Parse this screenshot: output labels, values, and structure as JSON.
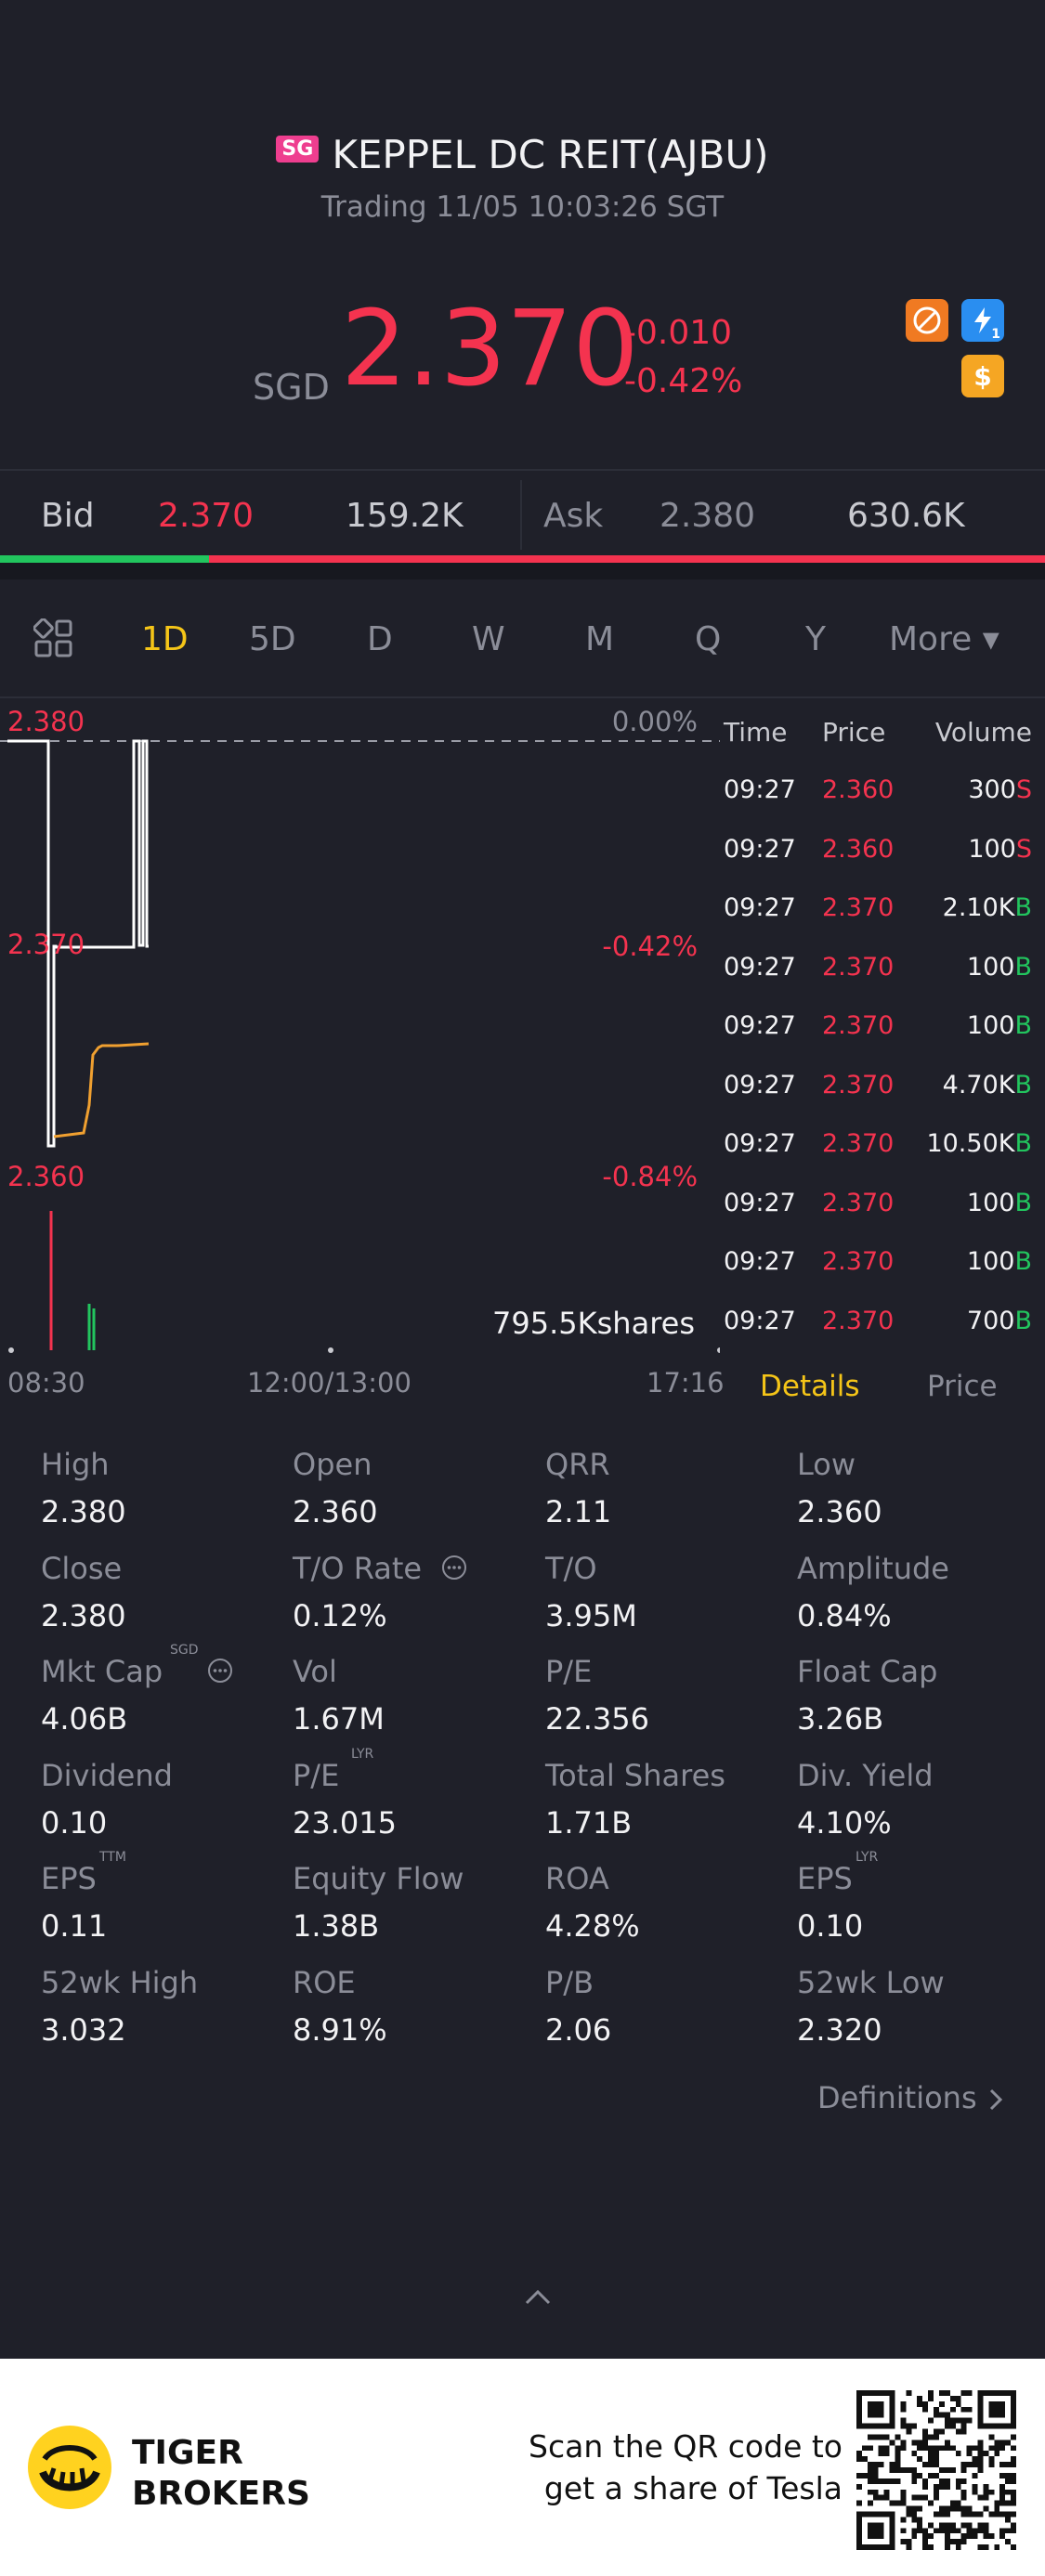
{
  "header": {
    "badge": "SG",
    "title": "KEPPEL DC REIT(AJBU)",
    "status": "Trading 11/05 10:03:26 SGT",
    "currency": "SGD",
    "price": "2.370",
    "change": "-0.010",
    "change_pct": "-0.42%",
    "icon_badge": "1"
  },
  "quote": {
    "bid_label": "Bid",
    "bid_price": "2.370",
    "bid_size": "159.2K",
    "ask_label": "Ask",
    "ask_price": "2.380",
    "ask_size": "630.6K",
    "bid_ratio": 0.2
  },
  "tabs": [
    {
      "label": "1D",
      "active": true
    },
    {
      "label": "5D"
    },
    {
      "label": "D"
    },
    {
      "label": "W"
    },
    {
      "label": "M"
    },
    {
      "label": "Q"
    },
    {
      "label": "Y"
    },
    {
      "label": "More ▾"
    }
  ],
  "chart": {
    "price_high": "2.380",
    "price_mid": "2.370",
    "price_low": "2.360",
    "pct_high": "0.00%",
    "pct_mid": "-0.42%",
    "pct_low": "-0.84%",
    "volume": "795.5Kshares",
    "time_start": "08:30",
    "time_mid": "12:00/13:00",
    "time_end": "17:16"
  },
  "trades": {
    "headers": [
      "Time",
      "Price",
      "Volume"
    ],
    "rows": [
      {
        "time": "09:27",
        "price": "2.360",
        "volume": "300",
        "side": "S"
      },
      {
        "time": "09:27",
        "price": "2.360",
        "volume": "100",
        "side": "S"
      },
      {
        "time": "09:27",
        "price": "2.370",
        "volume": "2.10K",
        "side": "B"
      },
      {
        "time": "09:27",
        "price": "2.370",
        "volume": "100",
        "side": "B"
      },
      {
        "time": "09:27",
        "price": "2.370",
        "volume": "100",
        "side": "B"
      },
      {
        "time": "09:27",
        "price": "2.370",
        "volume": "4.70K",
        "side": "B"
      },
      {
        "time": "09:27",
        "price": "2.370",
        "volume": "10.50K",
        "side": "B"
      },
      {
        "time": "09:27",
        "price": "2.370",
        "volume": "100",
        "side": "B"
      },
      {
        "time": "09:27",
        "price": "2.370",
        "volume": "100",
        "side": "B"
      },
      {
        "time": "09:27",
        "price": "2.370",
        "volume": "700",
        "side": "B"
      }
    ],
    "tab_details": "Details",
    "tab_price": "Price"
  },
  "stats": [
    [
      {
        "label": "High",
        "value": "2.380"
      },
      {
        "label": "Open",
        "value": "2.360"
      },
      {
        "label": "QRR",
        "value": "2.11"
      },
      {
        "label": "Low",
        "value": "2.360"
      }
    ],
    [
      {
        "label": "Close",
        "value": "2.380"
      },
      {
        "label": "T/O Rate",
        "value": "0.12%"
      },
      {
        "label": "T/O",
        "value": "3.95M"
      },
      {
        "label": "Amplitude",
        "value": "0.84%"
      }
    ],
    [
      {
        "label": "Mkt Cap",
        "value": "4.06B",
        "sup": "SGD"
      },
      {
        "label": "Vol",
        "value": "1.67M"
      },
      {
        "label": "P/E",
        "value": "22.356"
      },
      {
        "label": "Float Cap",
        "value": "3.26B"
      }
    ],
    [
      {
        "label": "Dividend",
        "value": "0.10"
      },
      {
        "label": "P/E",
        "value": "23.015",
        "sup": "LYR"
      },
      {
        "label": "Total Shares",
        "value": "1.71B"
      },
      {
        "label": "Div. Yield",
        "value": "4.10%"
      }
    ],
    [
      {
        "label": "EPS",
        "value": "0.11",
        "sup": "TTM"
      },
      {
        "label": "Equity Flow",
        "value": "1.38B"
      },
      {
        "label": "ROA",
        "value": "4.28%"
      },
      {
        "label": "EPS",
        "value": "0.10",
        "sup": "LYR"
      }
    ],
    [
      {
        "label": "52wk High",
        "value": "3.032"
      },
      {
        "label": "ROE",
        "value": "8.91%"
      },
      {
        "label": "P/B",
        "value": "2.06"
      },
      {
        "label": "52wk Low",
        "value": "2.320"
      }
    ]
  ],
  "definitions_link": "Definitions",
  "footer": {
    "brand_line1": "TIGER",
    "brand_line2": "BROKERS",
    "promo_line1": "Scan the QR code to",
    "promo_line2": "get a share of Tesla"
  },
  "colors": {
    "background": "#1f2029",
    "up_green": "#22c55e",
    "down_red": "#f4334f",
    "accent_yellow": "#f5c518",
    "avg_line_orange": "#f0a030"
  }
}
